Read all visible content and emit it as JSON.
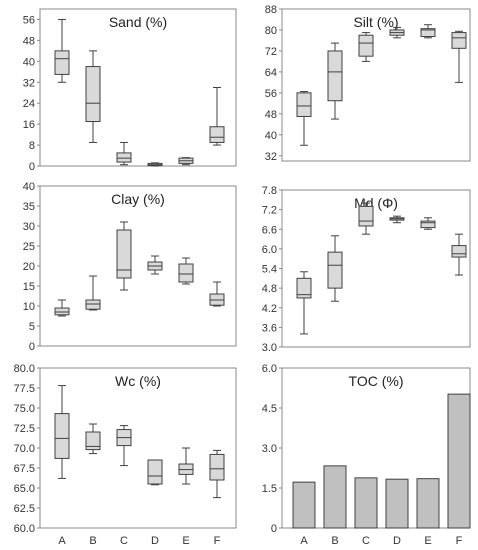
{
  "chart_data": [
    {
      "type": "box",
      "title": "Sand (%)",
      "categories": [
        "A",
        "B",
        "C",
        "D",
        "E",
        "F"
      ],
      "yticks": [
        "0",
        "8",
        "16",
        "24",
        "32",
        "40",
        "48",
        "56"
      ],
      "ylim": [
        0,
        60
      ],
      "boxes": [
        {
          "min": 32,
          "q1": 35,
          "median": 41,
          "q3": 44,
          "max": 56
        },
        {
          "min": 9,
          "q1": 17,
          "median": 24,
          "q3": 38,
          "max": 44
        },
        {
          "min": 0.5,
          "q1": 1.5,
          "median": 3,
          "q3": 5,
          "max": 9
        },
        {
          "min": 0,
          "q1": 0.2,
          "median": 0.5,
          "q3": 1,
          "max": 1.2
        },
        {
          "min": 0.5,
          "q1": 1,
          "median": 2,
          "q3": 3,
          "max": 3.2
        },
        {
          "min": 8,
          "q1": 9,
          "median": 11,
          "q3": 15,
          "max": 30
        }
      ]
    },
    {
      "type": "box",
      "title": "Silt (%)",
      "categories": [
        "A",
        "B",
        "C",
        "D",
        "E",
        "F"
      ],
      "yticks": [
        "32",
        "40",
        "48",
        "56",
        "64",
        "72",
        "80",
        "88"
      ],
      "ylim": [
        30,
        88
      ],
      "boxes": [
        {
          "min": 36,
          "q1": 47,
          "median": 51,
          "q3": 56,
          "max": 56.5
        },
        {
          "min": 46,
          "q1": 53,
          "median": 64,
          "q3": 72,
          "max": 75
        },
        {
          "min": 68,
          "q1": 70,
          "median": 75,
          "q3": 78,
          "max": 79
        },
        {
          "min": 77,
          "q1": 78,
          "median": 79,
          "q3": 80,
          "max": 81
        },
        {
          "min": 77,
          "q1": 77.5,
          "median": 80,
          "q3": 80.5,
          "max": 82
        },
        {
          "min": 60,
          "q1": 73,
          "median": 77,
          "q3": 79,
          "max": 79.5
        }
      ]
    },
    {
      "type": "box",
      "title": "Clay (%)",
      "categories": [
        "A",
        "B",
        "C",
        "D",
        "E",
        "F"
      ],
      "yticks": [
        "0",
        "5",
        "10",
        "15",
        "20",
        "25",
        "30",
        "35",
        "40"
      ],
      "ylim": [
        0,
        40
      ],
      "boxes": [
        {
          "min": 7.5,
          "q1": 7.8,
          "median": 8.5,
          "q3": 9.5,
          "max": 11.5
        },
        {
          "min": 9,
          "q1": 9.2,
          "median": 10.5,
          "q3": 11.5,
          "max": 17.5
        },
        {
          "min": 14,
          "q1": 17,
          "median": 19,
          "q3": 29,
          "max": 31
        },
        {
          "min": 18,
          "q1": 19,
          "median": 20,
          "q3": 21,
          "max": 22.5
        },
        {
          "min": 15.5,
          "q1": 16,
          "median": 18,
          "q3": 20.5,
          "max": 22
        },
        {
          "min": 10,
          "q1": 10.2,
          "median": 11.5,
          "q3": 13,
          "max": 16
        }
      ]
    },
    {
      "type": "box",
      "title": "Md (Φ)",
      "categories": [
        "A",
        "B",
        "C",
        "D",
        "E",
        "F"
      ],
      "yticks": [
        "3.0",
        "3.6",
        "4.2",
        "4.8",
        "5.4",
        "6.0",
        "6.6",
        "7.2",
        "7.8"
      ],
      "ylim": [
        3.0,
        7.8
      ],
      "boxes": [
        {
          "min": 3.4,
          "q1": 4.5,
          "median": 4.6,
          "q3": 5.1,
          "max": 5.3
        },
        {
          "min": 4.4,
          "q1": 4.8,
          "median": 5.5,
          "q3": 5.9,
          "max": 6.4
        },
        {
          "min": 6.45,
          "q1": 6.7,
          "median": 6.85,
          "q3": 7.3,
          "max": 7.4
        },
        {
          "min": 6.8,
          "q1": 6.88,
          "median": 6.92,
          "q3": 6.95,
          "max": 7.0
        },
        {
          "min": 6.6,
          "q1": 6.65,
          "median": 6.8,
          "q3": 6.85,
          "max": 6.95
        },
        {
          "min": 5.2,
          "q1": 5.75,
          "median": 5.85,
          "q3": 6.1,
          "max": 6.45
        }
      ]
    },
    {
      "type": "box",
      "title": "Wc (%)",
      "categories": [
        "A",
        "B",
        "C",
        "D",
        "E",
        "F"
      ],
      "yticks": [
        "60.0",
        "62.5",
        "65.0",
        "67.5",
        "70.0",
        "72.5",
        "75.0",
        "77.5",
        "80.0"
      ],
      "ylim": [
        60,
        80
      ],
      "boxes": [
        {
          "min": 66.2,
          "q1": 68.7,
          "median": 71.2,
          "q3": 74.3,
          "max": 77.8
        },
        {
          "min": 69.3,
          "q1": 69.8,
          "median": 70.2,
          "q3": 72.0,
          "max": 73.0
        },
        {
          "min": 67.8,
          "q1": 70.3,
          "median": 71.3,
          "q3": 72.3,
          "max": 72.8
        },
        {
          "min": 65.4,
          "q1": 65.5,
          "median": 66.5,
          "q3": 68.5,
          "max": 68.5
        },
        {
          "min": 65.5,
          "q1": 66.7,
          "median": 67.3,
          "q3": 68.0,
          "max": 70.0
        },
        {
          "min": 63.8,
          "q1": 66.0,
          "median": 67.4,
          "q3": 69.2,
          "max": 69.7
        }
      ]
    },
    {
      "type": "bar",
      "title": "TOC (%)",
      "categories": [
        "A",
        "B",
        "C",
        "D",
        "E",
        "F"
      ],
      "values": [
        1.72,
        2.33,
        1.88,
        1.83,
        1.85,
        5.02
      ],
      "yticks": [
        "0",
        "1.5",
        "3.0",
        "4.5",
        "6.0"
      ],
      "ylim": [
        0,
        6
      ]
    }
  ],
  "colors": {
    "box_fill": "#d9d9d9",
    "bar_fill": "#c0c0c0",
    "stroke": "#404040",
    "axis": "#888888"
  }
}
